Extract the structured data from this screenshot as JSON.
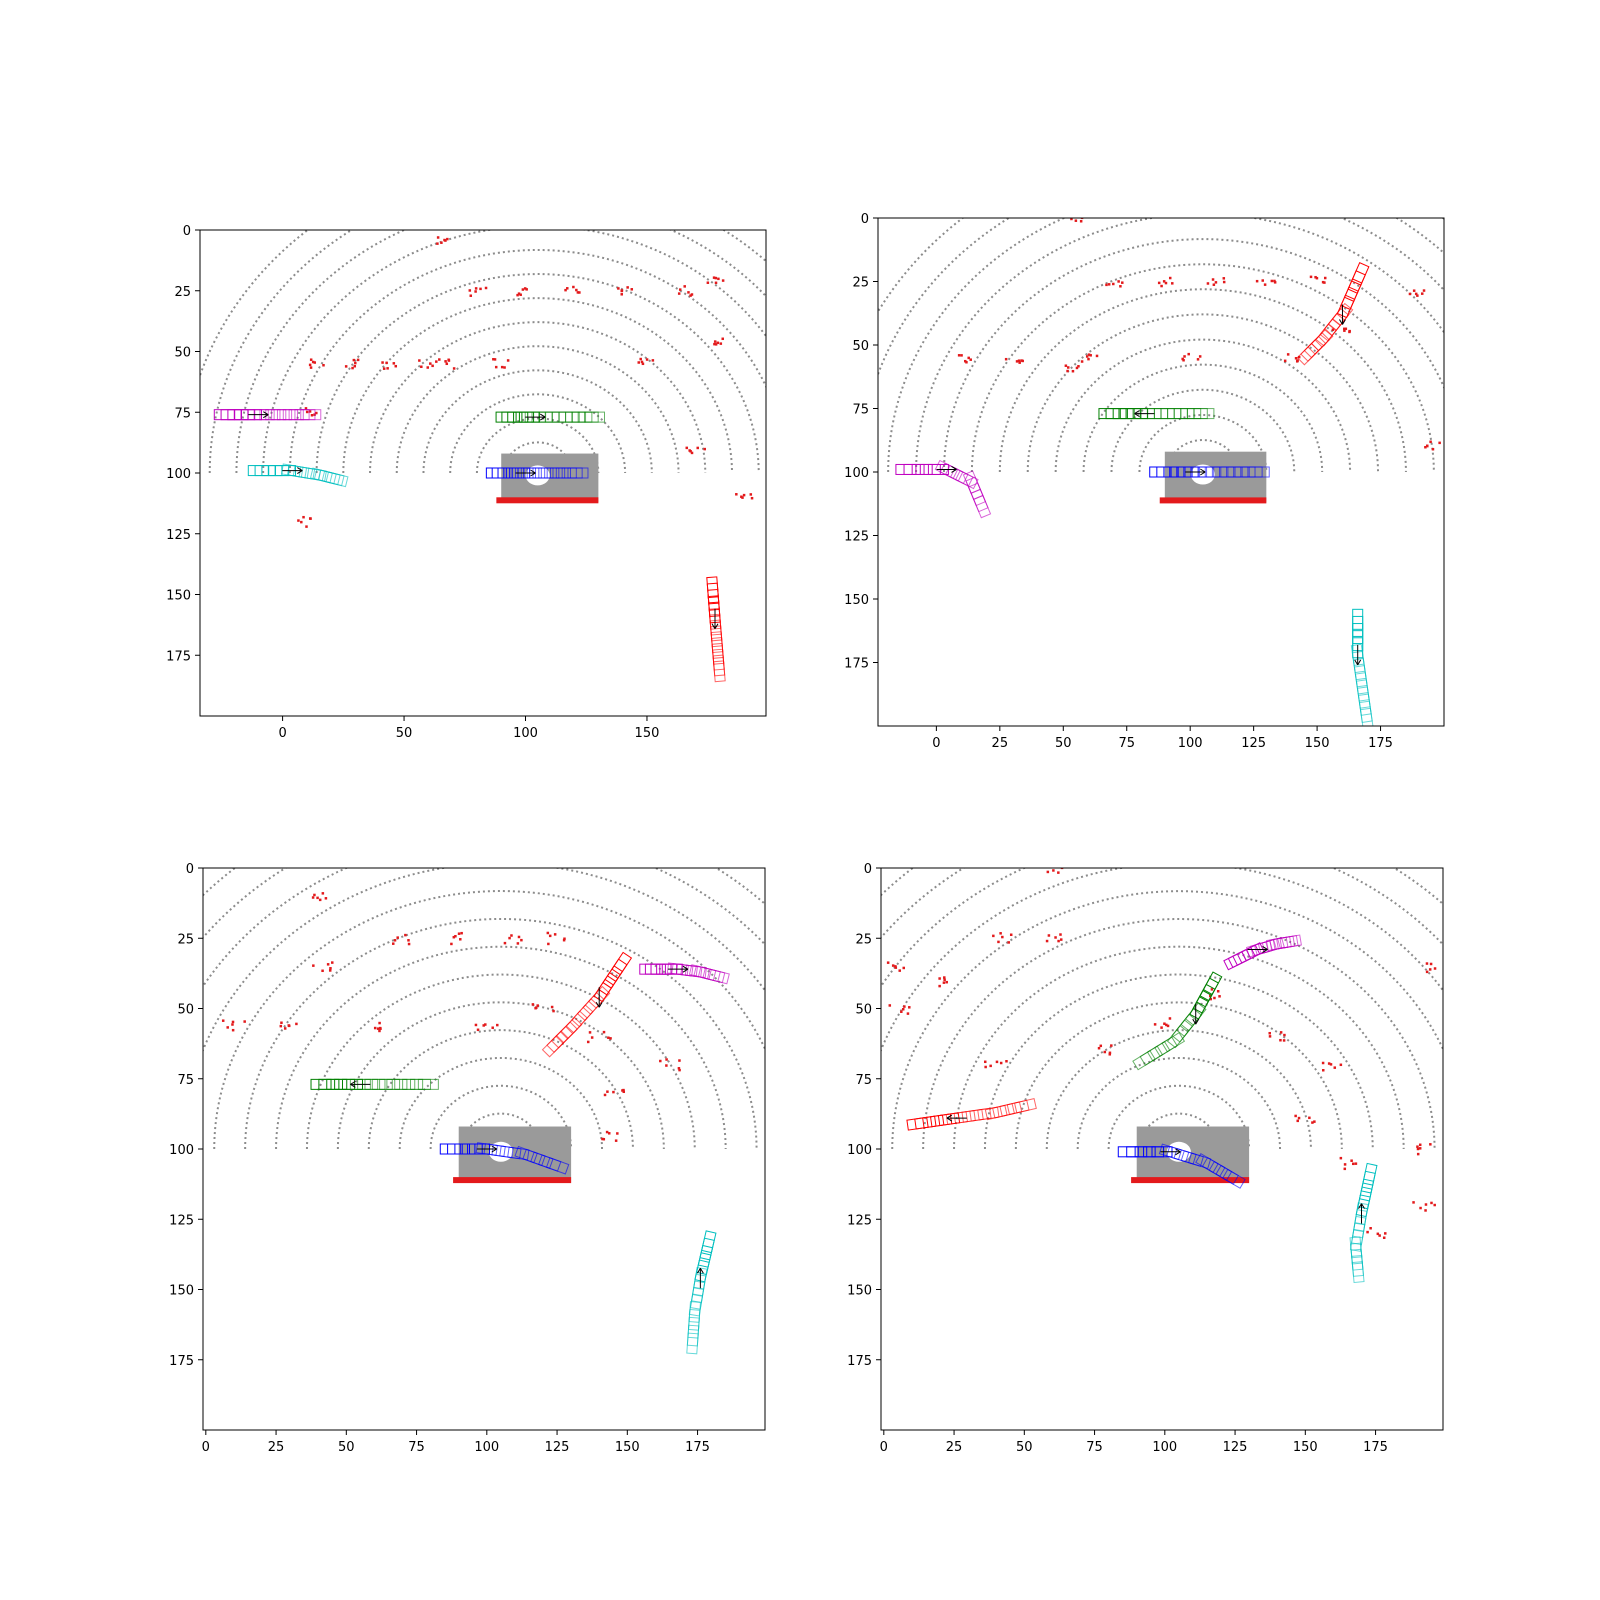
{
  "chart_data": [
    {
      "type": "scatter",
      "panel": "top-left",
      "xlim": [
        -34,
        199
      ],
      "ylim": [
        200,
        0
      ],
      "xticks": [
        0,
        50,
        100,
        150
      ],
      "yticks": [
        0,
        25,
        50,
        75,
        100,
        125,
        150,
        175
      ],
      "grid": false,
      "points_red_static": [
        [
          67,
          4
        ],
        [
          67,
          55
        ],
        [
          80,
          25
        ],
        [
          100,
          25
        ],
        [
          120,
          25
        ],
        [
          140,
          25
        ],
        [
          165,
          25
        ],
        [
          45,
          55
        ],
        [
          60,
          55
        ],
        [
          90,
          55
        ],
        [
          150,
          55
        ],
        [
          30,
          55
        ],
        [
          15,
          55
        ],
        [
          178,
          20
        ],
        [
          178,
          45
        ],
        [
          10,
          75
        ],
        [
          10,
          120
        ],
        [
          170,
          90
        ],
        [
          190,
          110
        ]
      ],
      "tracks": [
        {
          "color": "#bf00bf",
          "path": [
            [
              -24,
              76
            ],
            [
              -10,
              76
            ],
            [
              2,
              76
            ],
            [
              14,
              76
            ]
          ],
          "heading": "right"
        },
        {
          "color": "#00bfbf",
          "path": [
            [
              -10,
              99
            ],
            [
              4,
              99
            ],
            [
              16,
              101
            ],
            [
              24,
              103
            ]
          ],
          "heading": "right"
        },
        {
          "color": "#008000",
          "path": [
            [
              92,
              77
            ],
            [
              104,
              77
            ],
            [
              118,
              77
            ],
            [
              131,
              77
            ]
          ],
          "heading": "right"
        },
        {
          "color": "#0000ff",
          "path": [
            [
              88,
              100
            ],
            [
              100,
              100
            ],
            [
              112,
              100
            ],
            [
              124,
              100
            ]
          ],
          "heading": "right"
        },
        {
          "color": "#ff0000",
          "path": [
            [
              177,
              147
            ],
            [
              178,
              160
            ],
            [
              179,
              172
            ],
            [
              180,
              184
            ]
          ],
          "heading": "down"
        }
      ]
    },
    {
      "type": "scatter",
      "panel": "top-right",
      "xlim": [
        -23,
        200
      ],
      "ylim": [
        200,
        0
      ],
      "xticks": [
        0,
        25,
        50,
        75,
        100,
        125,
        150,
        175
      ],
      "yticks": [
        0,
        25,
        50,
        75,
        100,
        125,
        150,
        175
      ],
      "grid": false,
      "points_red_static": [
        [
          54,
          0
        ],
        [
          54,
          60
        ],
        [
          70,
          25
        ],
        [
          90,
          25
        ],
        [
          110,
          25
        ],
        [
          130,
          25
        ],
        [
          150,
          25
        ],
        [
          10,
          55
        ],
        [
          30,
          55
        ],
        [
          60,
          55
        ],
        [
          100,
          55
        ],
        [
          140,
          55
        ],
        [
          160,
          45
        ],
        [
          190,
          30
        ],
        [
          195,
          90
        ]
      ],
      "tracks": [
        {
          "color": "#ff0000",
          "path": [
            [
              167,
              22
            ],
            [
              160,
              38
            ],
            [
              152,
              48
            ],
            [
              145,
              55
            ]
          ],
          "heading": "down"
        },
        {
          "color": "#008000",
          "path": [
            [
              68,
              77
            ],
            [
              82,
              77
            ],
            [
              95,
              77
            ],
            [
              108,
              77
            ]
          ],
          "heading": "left"
        },
        {
          "color": "#bf00bf",
          "path": [
            [
              -12,
              99
            ],
            [
              4,
              99
            ],
            [
              14,
              104
            ],
            [
              19,
              116
            ]
          ],
          "heading": "right"
        },
        {
          "color": "#0000ff",
          "path": [
            [
              88,
              100
            ],
            [
              102,
              100
            ],
            [
              116,
              100
            ],
            [
              130,
              100
            ]
          ],
          "heading": "right"
        },
        {
          "color": "#00bfbf",
          "path": [
            [
              166,
              158
            ],
            [
              166,
              172
            ],
            [
              168,
              186
            ],
            [
              170,
              200
            ]
          ],
          "heading": "down"
        }
      ]
    },
    {
      "type": "scatter",
      "panel": "bottom-left",
      "xlim": [
        -1,
        199
      ],
      "ylim": [
        200,
        0
      ],
      "xticks": [
        0,
        25,
        50,
        75,
        100,
        125,
        150,
        175
      ],
      "yticks": [
        0,
        25,
        50,
        75,
        100,
        125,
        150,
        175
      ],
      "grid": false,
      "points_red_static": [
        [
          41,
          10
        ],
        [
          41,
          35
        ],
        [
          70,
          25
        ],
        [
          90,
          25
        ],
        [
          110,
          25
        ],
        [
          125,
          25
        ],
        [
          10,
          56
        ],
        [
          30,
          56
        ],
        [
          60,
          56
        ],
        [
          100,
          56
        ],
        [
          120,
          50
        ],
        [
          140,
          60
        ],
        [
          145,
          80
        ],
        [
          145,
          95
        ],
        [
          165,
          70
        ]
      ],
      "tracks": [
        {
          "color": "#ff0000",
          "path": [
            [
              148,
              34
            ],
            [
              140,
              46
            ],
            [
              130,
              57
            ],
            [
              122,
              65
            ]
          ],
          "heading": "down"
        },
        {
          "color": "#bf00bf",
          "path": [
            [
              158,
              36
            ],
            [
              168,
              36
            ],
            [
              176,
              37
            ],
            [
              184,
              39
            ]
          ],
          "heading": "right"
        },
        {
          "color": "#008000",
          "path": [
            [
              41,
              77
            ],
            [
              55,
              77
            ],
            [
              68,
              77
            ],
            [
              82,
              77
            ]
          ],
          "heading": "left"
        },
        {
          "color": "#0000ff",
          "path": [
            [
              87,
              100
            ],
            [
              100,
              100
            ],
            [
              114,
              102
            ],
            [
              128,
              107
            ]
          ],
          "heading": "right"
        },
        {
          "color": "#00bfbf",
          "path": [
            [
              179,
              133
            ],
            [
              176,
              146
            ],
            [
              174,
              158
            ],
            [
              173,
              172
            ]
          ],
          "heading": "up"
        }
      ]
    },
    {
      "type": "scatter",
      "panel": "bottom-right",
      "xlim": [
        -1,
        199
      ],
      "ylim": [
        200,
        0
      ],
      "xticks": [
        0,
        25,
        50,
        75,
        100,
        125,
        150,
        175
      ],
      "yticks": [
        0,
        25,
        50,
        75,
        100,
        125,
        150,
        175
      ],
      "grid": false,
      "points_red_static": [
        [
          62,
          0
        ],
        [
          62,
          25
        ],
        [
          42,
          25
        ],
        [
          20,
          40
        ],
        [
          5,
          50
        ],
        [
          5,
          35
        ],
        [
          40,
          70
        ],
        [
          80,
          65
        ],
        [
          100,
          55
        ],
        [
          120,
          45
        ],
        [
          140,
          60
        ],
        [
          160,
          70
        ],
        [
          150,
          90
        ],
        [
          165,
          105
        ],
        [
          175,
          130
        ],
        [
          192,
          120
        ],
        [
          192,
          100
        ],
        [
          197,
          35
        ]
      ],
      "tracks": [
        {
          "color": "#bf00bf",
          "path": [
            [
              125,
              33
            ],
            [
              133,
              29
            ],
            [
              140,
              27
            ],
            [
              146,
              26
            ]
          ],
          "heading": "right"
        },
        {
          "color": "#008000",
          "path": [
            [
              117,
              41
            ],
            [
              111,
              52
            ],
            [
              103,
              62
            ],
            [
              90,
              70
            ]
          ],
          "heading": "down"
        },
        {
          "color": "#ff0000",
          "path": [
            [
              12,
              91
            ],
            [
              26,
              89
            ],
            [
              40,
              87
            ],
            [
              53,
              84
            ]
          ],
          "heading": "left"
        },
        {
          "color": "#0000ff",
          "path": [
            [
              87,
              101
            ],
            [
              102,
              101
            ],
            [
              115,
              105
            ],
            [
              127,
              112
            ]
          ],
          "heading": "right"
        },
        {
          "color": "#00bfbf",
          "path": [
            [
              173,
              109
            ],
            [
              170,
              123
            ],
            [
              168,
              135
            ],
            [
              169,
              146
            ]
          ],
          "heading": "up"
        }
      ]
    }
  ]
}
